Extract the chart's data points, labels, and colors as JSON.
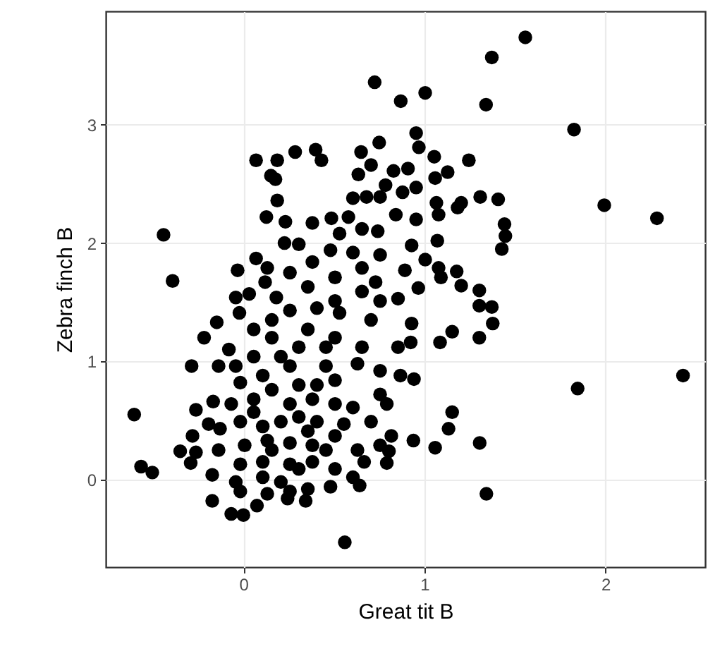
{
  "chart_data": {
    "type": "scatter",
    "xlabel": "Great tit B",
    "ylabel": "Zebra finch B",
    "xlim": [
      -0.76,
      2.55
    ],
    "ylim": [
      -0.74,
      3.96
    ],
    "xticks": [
      0,
      1,
      2
    ],
    "yticks": [
      0,
      1,
      2,
      3
    ],
    "grid": true,
    "marker": "circle",
    "series": [
      {
        "color": "#000000",
        "x": [
          1.557,
          1.372,
          0.725,
          1.004,
          0.869,
          1.34,
          1.826,
          0.954,
          0.969,
          0.75,
          0.286,
          0.399,
          0.431,
          0.07,
          0.187,
          0.65,
          0.705,
          1.245,
          1.054,
          1.128,
          1.059,
          0.829,
          0.909,
          0.635,
          0.152,
          0.177,
          0.785,
          0.954,
          0.879,
          0.755,
          1.308,
          1.407,
          1.183,
          1.203,
          1.066,
          0.187,
          0.605,
          0.68,
          1.993,
          2.284,
          0.127,
          0.232,
          0.381,
          0.486,
          0.58,
          0.842,
          0.954,
          1.078,
          1.442,
          1.447,
          1.427,
          1.071,
          0.929,
          0.655,
          0.742,
          0.531,
          -0.441,
          -0.391,
          0.227,
          0.306,
          0.481,
          0.605,
          0.755,
          1.004,
          0.07,
          -0.032,
          0.132,
          0.257,
          0.381,
          0.506,
          0.655,
          0.73,
          0.892,
          1.078,
          1.178,
          1.091,
          1.203,
          1.303,
          0.966,
          0.12,
          0.182,
          -0.042,
          0.032,
          0.356,
          0.506,
          0.655,
          0.755,
          0.854,
          1.303,
          1.372,
          1.377,
          -0.022,
          -0.147,
          0.257,
          0.406,
          0.531,
          0.705,
          0.929,
          1.153,
          1.086,
          1.303,
          0.924,
          0.854,
          -0.217,
          -0.08,
          0.057,
          0.157,
          0.356,
          0.506,
          0.655,
          -0.286,
          -0.137,
          -0.042,
          -0.017,
          0.107,
          0.257,
          0.456,
          0.63,
          0.755,
          0.867,
          0.942,
          1.846,
          2.428,
          0.755,
          0.792,
          -0.167,
          -0.067,
          0.057,
          0.257,
          0.381,
          0.506,
          0.605,
          -0.603,
          -0.262,
          1.153,
          -0.192,
          -0.129,
          -0.017,
          0.107,
          0.207,
          0.306,
          0.406,
          0.555,
          0.705,
          0.817,
          1.133,
          -0.281,
          -0.349,
          -0.262,
          -0.291,
          -0.137,
          0.007,
          0.132,
          0.257,
          0.381,
          0.506,
          0.63,
          0.755,
          0.939,
          1.059,
          1.305,
          0.804,
          0.792,
          -0.565,
          -0.503,
          -0.172,
          -0.017,
          0.107,
          0.257,
          0.381,
          0.506,
          0.605,
          0.667,
          -0.042,
          -0.017,
          0.132,
          0.257,
          0.356,
          0.481,
          0.642,
          -0.172,
          -0.067,
          0,
          0.075,
          0.244,
          0.344,
          1.342,
          0.56,
          0.057,
          0.157,
          0.306,
          0.406,
          0.506,
          0.207,
          0.306,
          0.456,
          0.057,
          0.157,
          0.356,
          0.157,
          0.306,
          0.456,
          0.107,
          0.207
        ],
        "values": [
          3.74,
          3.57,
          3.36,
          3.27,
          3.2,
          3.17,
          2.96,
          2.93,
          2.81,
          2.85,
          2.77,
          2.79,
          2.7,
          2.7,
          2.7,
          2.77,
          2.66,
          2.7,
          2.73,
          2.6,
          2.55,
          2.61,
          2.63,
          2.58,
          2.57,
          2.54,
          2.49,
          2.47,
          2.43,
          2.39,
          2.39,
          2.37,
          2.3,
          2.34,
          2.34,
          2.36,
          2.38,
          2.39,
          2.32,
          2.21,
          2.22,
          2.18,
          2.17,
          2.21,
          2.22,
          2.24,
          2.2,
          2.24,
          2.16,
          2.06,
          1.95,
          2.02,
          1.98,
          2.12,
          2.1,
          2.08,
          2.07,
          1.68,
          2,
          1.99,
          1.94,
          1.92,
          1.9,
          1.86,
          1.87,
          1.77,
          1.79,
          1.75,
          1.84,
          1.71,
          1.79,
          1.67,
          1.77,
          1.79,
          1.76,
          1.71,
          1.64,
          1.6,
          1.62,
          1.67,
          1.54,
          1.54,
          1.57,
          1.63,
          1.51,
          1.59,
          1.51,
          1.53,
          1.47,
          1.46,
          1.32,
          1.41,
          1.33,
          1.43,
          1.45,
          1.41,
          1.35,
          1.32,
          1.25,
          1.16,
          1.2,
          1.16,
          1.12,
          1.2,
          1.1,
          1.27,
          1.2,
          1.27,
          1.2,
          1.12,
          0.96,
          0.96,
          0.96,
          0.82,
          0.88,
          0.96,
          0.96,
          0.98,
          0.92,
          0.88,
          0.85,
          0.77,
          0.88,
          0.72,
          0.64,
          0.66,
          0.64,
          0.68,
          0.64,
          0.68,
          0.64,
          0.61,
          0.55,
          0.59,
          0.57,
          0.47,
          0.43,
          0.49,
          0.45,
          0.49,
          0.53,
          0.49,
          0.47,
          0.49,
          0.37,
          0.43,
          0.37,
          0.24,
          0.23,
          0.14,
          0.25,
          0.29,
          0.33,
          0.31,
          0.29,
          0.37,
          0.25,
          0.29,
          0.33,
          0.27,
          0.31,
          0.24,
          0.14,
          0.11,
          0.06,
          0.04,
          0.13,
          0.15,
          0.13,
          0.15,
          0.09,
          0.02,
          0.15,
          -0.02,
          -0.1,
          -0.12,
          -0.1,
          -0.08,
          -0.06,
          -0.05,
          -0.18,
          -0.29,
          -0.3,
          -0.22,
          -0.16,
          -0.18,
          -0.12,
          -0.53,
          0.57,
          0.76,
          0.8,
          0.8,
          0.84,
          1.04,
          1.12,
          1.12,
          1.04,
          1.35,
          0.41,
          0.25,
          0.09,
          0.25,
          0.02,
          -0.02
        ]
      }
    ]
  }
}
